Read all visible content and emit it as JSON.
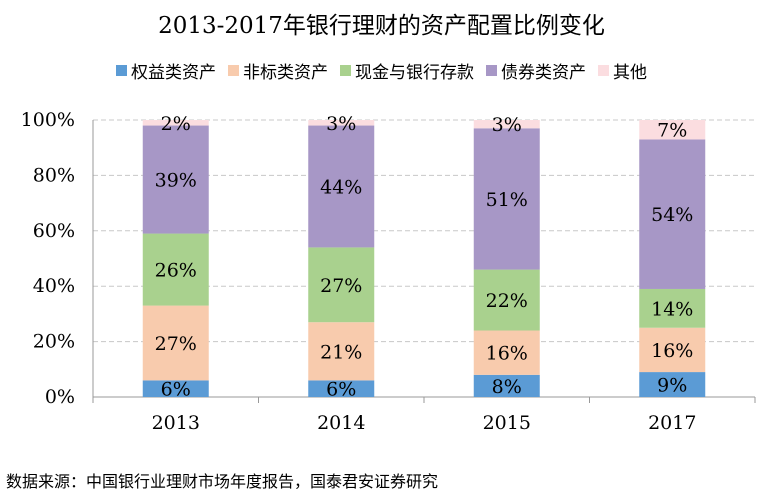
{
  "chart_data": {
    "type": "bar",
    "stacked": true,
    "title": "2013-2017年银行理财的资产配置比例变化",
    "categories": [
      "2013",
      "2014",
      "2015",
      "2017"
    ],
    "series": [
      {
        "name": "权益类资产",
        "color": "#5b9bd5",
        "values": [
          6,
          6,
          8,
          9
        ],
        "labels": [
          "6%",
          "6%",
          "8%",
          "9%"
        ]
      },
      {
        "name": "非标类资产",
        "color": "#f8cbad",
        "values": [
          27,
          21,
          16,
          16
        ],
        "labels": [
          "27%",
          "21%",
          "16%",
          "16%"
        ]
      },
      {
        "name": "现金与银行存款",
        "color": "#a9d18e",
        "values": [
          26,
          27,
          22,
          14
        ],
        "labels": [
          "26%",
          "27%",
          "22%",
          "14%"
        ]
      },
      {
        "name": "债券类资产",
        "color": "#a797c6",
        "values": [
          39,
          44,
          51,
          54
        ],
        "labels": [
          "39%",
          "44%",
          "51%",
          "54%"
        ]
      },
      {
        "name": "其他",
        "color": "#fbdde0",
        "values": [
          2,
          3,
          3,
          7
        ],
        "labels": [
          "2%",
          "3%",
          "3%",
          "7%"
        ]
      }
    ],
    "ylim": [
      0,
      100
    ],
    "yticks": [
      "0%",
      "20%",
      "40%",
      "60%",
      "80%",
      "100%"
    ],
    "ytick_values": [
      0,
      20,
      40,
      60,
      80,
      100
    ],
    "grid": true,
    "legend_position": "top"
  },
  "source_note": "数据来源：中国银行业理财市场年度报告，国泰君安证券研究"
}
